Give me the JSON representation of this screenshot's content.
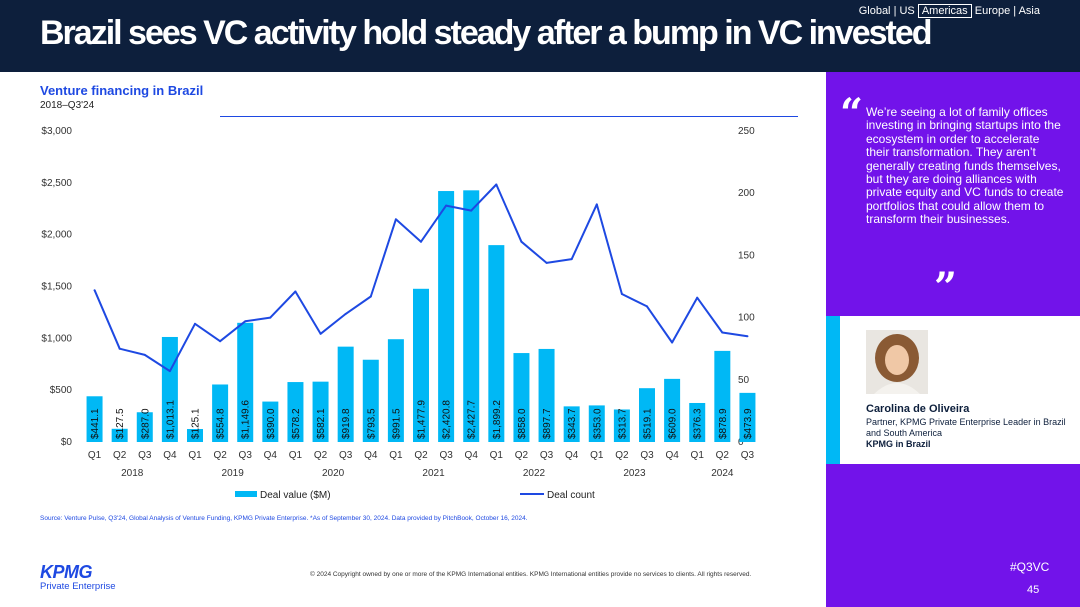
{
  "header": {
    "headline": "Brazil sees VC activity hold steady after a bump in VC invested",
    "region_global": "Global",
    "region_us": "US",
    "region_americas": "Americas",
    "region_europe": "Europe",
    "region_asia": "Asia",
    "separator": "|"
  },
  "chart_title": "Venture financing in Brazil",
  "chart_subtitle": "2018–Q3'24",
  "chart_data": {
    "type": "bar",
    "categories": [
      "Q1",
      "Q2",
      "Q3",
      "Q4",
      "Q1",
      "Q2",
      "Q3",
      "Q4",
      "Q1",
      "Q2",
      "Q3",
      "Q4",
      "Q1",
      "Q2",
      "Q3",
      "Q4",
      "Q1",
      "Q2",
      "Q3",
      "Q4",
      "Q1",
      "Q2",
      "Q3",
      "Q4",
      "Q1",
      "Q2",
      "Q3"
    ],
    "years": [
      {
        "label": "2018",
        "quarters": 4
      },
      {
        "label": "2019",
        "quarters": 4
      },
      {
        "label": "2020",
        "quarters": 4
      },
      {
        "label": "2021",
        "quarters": 4
      },
      {
        "label": "2022",
        "quarters": 4
      },
      {
        "label": "2023",
        "quarters": 4
      },
      {
        "label": "2024",
        "quarters": 3
      }
    ],
    "series": [
      {
        "name": "Deal value ($M)",
        "type": "bar",
        "axis": "left",
        "color": "#00b8f5",
        "values": [
          441.1,
          127.5,
          287.0,
          1013.1,
          125.1,
          554.8,
          1149.6,
          390.0,
          578.2,
          582.1,
          919.8,
          793.5,
          991.5,
          1477.9,
          2420.8,
          2427.7,
          1899.2,
          858.0,
          897.7,
          343.7,
          353.0,
          313.7,
          519.1,
          609.0,
          376.3,
          878.9,
          473.9
        ],
        "labels": [
          "$441.1",
          "$127.5",
          "$287.0",
          "$1,013.1",
          "$125.1",
          "$554.8",
          "$1,149.6",
          "$390.0",
          "$578.2",
          "$582.1",
          "$919.8",
          "$793.5",
          "$991.5",
          "$1,477.9",
          "$2,420.8",
          "$2,427.7",
          "$1,899.2",
          "$858.0",
          "$897.7",
          "$343.7",
          "$353.0",
          "$313.7",
          "$519.1",
          "$609.0",
          "$376.3",
          "$878.9",
          "$473.9"
        ]
      },
      {
        "name": "Deal count",
        "type": "line",
        "axis": "right",
        "color": "#1e49e2",
        "values": [
          122,
          75,
          70,
          57,
          95,
          81,
          97,
          100,
          121,
          87,
          103,
          117,
          179,
          161,
          190,
          186,
          207,
          161,
          144,
          147,
          191,
          119,
          109,
          80,
          116,
          88,
          85
        ]
      }
    ],
    "y_left": {
      "min": 0,
      "max": 3000,
      "ticks": [
        0,
        500,
        1000,
        1500,
        2000,
        2500,
        3000
      ],
      "tick_labels": [
        "$0",
        "$500",
        "$1,000",
        "$1,500",
        "$2,000",
        "$2,500",
        "$3,000"
      ]
    },
    "y_right": {
      "min": 0,
      "max": 250,
      "ticks": [
        0,
        50,
        100,
        150,
        200,
        250
      ],
      "tick_labels": [
        "0",
        "50",
        "100",
        "150",
        "200",
        "250"
      ]
    },
    "legend": [
      {
        "name": "Deal value ($M)",
        "color": "#00b8f5"
      },
      {
        "name": "Deal count",
        "color": "#1e49e2"
      }
    ],
    "legend_position": "bottom"
  },
  "source": "Source: Venture Pulse, Q3'24, Global Analysis of Venture Funding, KPMG Private Enterprise. *As of September 30, 2024. Data provided by PitchBook, October 16, 2024.",
  "copyright": "© 2024 Copyright owned by one or more of the KPMG International entities. KPMG International entities provide no services to clients. All rights reserved.",
  "logo": {
    "name": "KPMG",
    "sub": "Private Enterprise"
  },
  "quote": {
    "open_mark": "“",
    "close_mark": "”",
    "text": "We’re seeing a lot of family offices investing in bringing startups into the ecosystem in order to accelerate their transformation. They aren’t generally creating funds themselves, but they are doing alliances with private equity and VC funds to create portfolios that could allow them to transform their businesses."
  },
  "person": {
    "name": "Carolina de Oliveira",
    "role": "Partner, KPMG Private Enterprise Leader in Brazil and South America",
    "org": "KPMG in Brazil"
  },
  "hashtag": "#Q3VC",
  "page_number": "45",
  "colors": {
    "navy": "#0d1f3c",
    "purple": "#7213ea",
    "cyan": "#00b8f5",
    "blue": "#1e49e2"
  }
}
